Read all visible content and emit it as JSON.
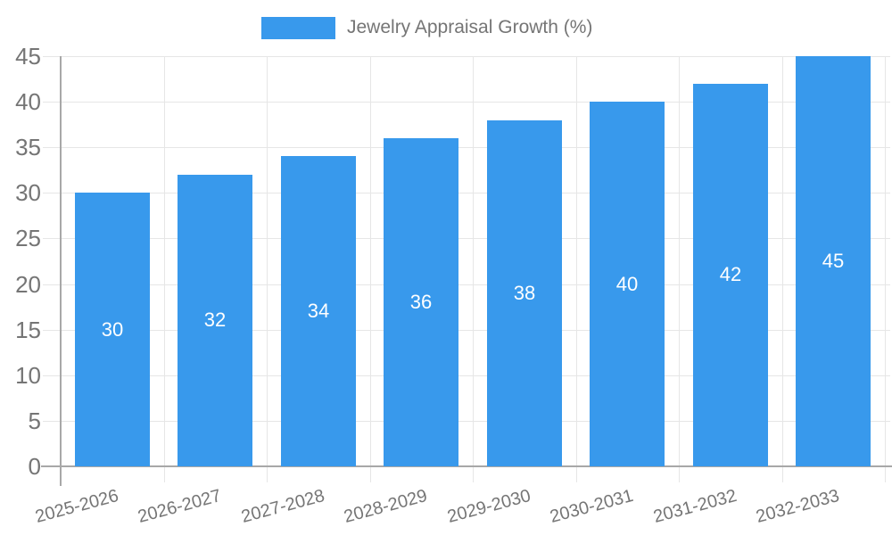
{
  "chart_data": {
    "type": "bar",
    "title": "Jewelry Appraisal Growth (%)",
    "categories": [
      "2025-2026",
      "2026-2027",
      "2027-2028",
      "2028-2029",
      "2029-2030",
      "2030-2031",
      "2031-2032",
      "2032-2033"
    ],
    "values": [
      30,
      32,
      34,
      36,
      38,
      40,
      42,
      45
    ],
    "xlabel": "",
    "ylabel": "",
    "ylim": [
      0,
      45
    ],
    "yticks": [
      0,
      5,
      10,
      15,
      20,
      25,
      30,
      35,
      40,
      45
    ],
    "grid": true,
    "legend_position": "top-center",
    "value_label_position": "inside-center",
    "x_label_rotation_deg": -15
  },
  "legend": {
    "label": "Jewelry Appraisal Growth (%)"
  },
  "colors": {
    "bar": "#3899EC",
    "grid": "#E6E6E6",
    "axis": "#A8A8A8",
    "text": "#757575",
    "value_text": "#FFFFFF",
    "background": "#FFFFFF"
  }
}
